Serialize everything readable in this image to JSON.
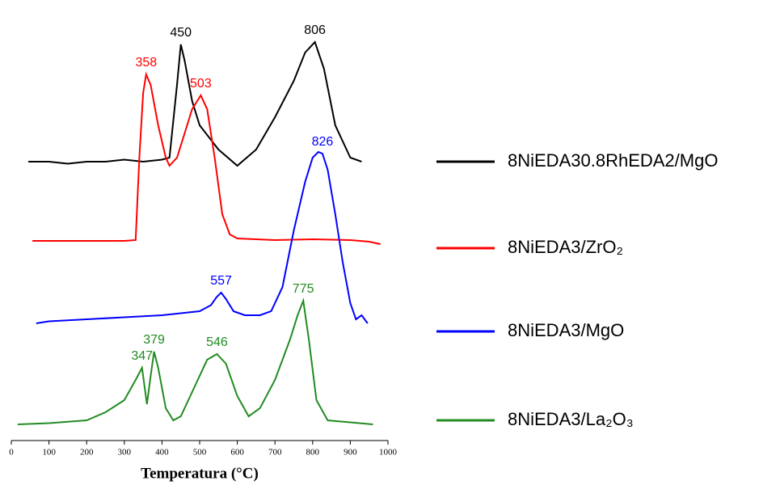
{
  "chart_data": {
    "type": "line",
    "x_label": "Temperatura (°C)",
    "xlim": [
      0,
      1000
    ],
    "xticks": [
      0,
      100,
      200,
      300,
      400,
      500,
      600,
      700,
      800,
      900,
      1000
    ],
    "ylim": [
      0,
      100
    ],
    "series": [
      {
        "name": "8NiEDA30.8RhEDA2/MgO",
        "color": "#000000",
        "x": [
          45,
          100,
          150,
          200,
          250,
          300,
          350,
          400,
          420,
          440,
          450,
          460,
          480,
          500,
          550,
          600,
          650,
          700,
          750,
          780,
          806,
          830,
          860,
          900,
          930
        ],
        "values": [
          69,
          69,
          68.5,
          69,
          69,
          69.5,
          69,
          69.5,
          70,
          88,
          98,
          94,
          84,
          78,
          72,
          68,
          72,
          80,
          89,
          96,
          98.6,
          92,
          78,
          70,
          69
        ],
        "peaks": [
          450,
          806
        ]
      },
      {
        "name": "8NiEDA3/ZrO₂",
        "color": "#ff0000",
        "x": [
          56,
          100,
          200,
          300,
          330,
          340,
          350,
          358,
          370,
          390,
          410,
          420,
          440,
          460,
          480,
          503,
          520,
          540,
          560,
          580,
          600,
          700,
          800,
          900,
          950,
          980
        ],
        "values": [
          49.4,
          49.4,
          49.4,
          49.4,
          49.6,
          70,
          86,
          90.6,
          88,
          78,
          70,
          68,
          70,
          76,
          82,
          85.4,
          82,
          70,
          56,
          51,
          50,
          49.6,
          49.8,
          49.6,
          49.2,
          48.6
        ],
        "peaks": [
          358,
          503
        ]
      },
      {
        "name": "8NiEDA3/MgO",
        "color": "#0000ff",
        "x": [
          66,
          100,
          200,
          300,
          400,
          450,
          500,
          530,
          545,
          557,
          570,
          590,
          620,
          660,
          690,
          720,
          750,
          780,
          800,
          815,
          826,
          840,
          860,
          880,
          900,
          915,
          930,
          946
        ],
        "values": [
          29,
          29.5,
          30,
          30.5,
          31,
          31.5,
          32,
          33.5,
          35.5,
          36.6,
          35,
          32,
          31,
          31,
          32,
          38,
          52,
          64,
          70,
          71.4,
          71,
          67,
          56,
          44,
          34,
          30,
          31,
          29
        ],
        "peaks": [
          557,
          826
        ]
      },
      {
        "name": "8NiEDA3/La₂O₃",
        "color": "#228b22",
        "x": [
          17,
          100,
          200,
          250,
          300,
          330,
          347,
          360,
          370,
          379,
          390,
          410,
          430,
          450,
          480,
          520,
          546,
          570,
          600,
          630,
          660,
          700,
          740,
          760,
          775,
          790,
          810,
          840,
          900,
          960
        ],
        "values": [
          4,
          4.3,
          5,
          7,
          10,
          15,
          18,
          9,
          16,
          22,
          18,
          8,
          5,
          6,
          12,
          20,
          21.4,
          19,
          11,
          6,
          8,
          15,
          25,
          31,
          34.6,
          25,
          10,
          5,
          4.5,
          4
        ],
        "peaks": [
          347,
          379,
          546,
          775
        ]
      }
    ]
  }
}
